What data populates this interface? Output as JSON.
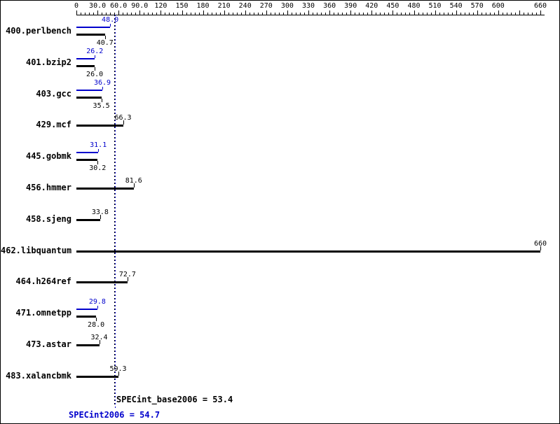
{
  "chart_data": {
    "type": "bar",
    "orientation": "horizontal",
    "title": "",
    "xlabel": "",
    "ylabel": "",
    "x_axis": {
      "min": 0,
      "max": 660,
      "major_tick_interval": 30,
      "minor_tick_interval": 6,
      "ticks": [
        {
          "value": 0,
          "label": "0"
        },
        {
          "value": 30,
          "label": "30.0"
        },
        {
          "value": 60,
          "label": "60.0"
        },
        {
          "value": 90,
          "label": "90.0"
        },
        {
          "value": 120,
          "label": "120"
        },
        {
          "value": 150,
          "label": "150"
        },
        {
          "value": 180,
          "label": "180"
        },
        {
          "value": 210,
          "label": "210"
        },
        {
          "value": 240,
          "label": "240"
        },
        {
          "value": 270,
          "label": "270"
        },
        {
          "value": 300,
          "label": "300"
        },
        {
          "value": 330,
          "label": "330"
        },
        {
          "value": 360,
          "label": "360"
        },
        {
          "value": 390,
          "label": "390"
        },
        {
          "value": 420,
          "label": "420"
        },
        {
          "value": 450,
          "label": "450"
        },
        {
          "value": 480,
          "label": "480"
        },
        {
          "value": 510,
          "label": "510"
        },
        {
          "value": 540,
          "label": "540"
        },
        {
          "value": 570,
          "label": "570"
        },
        {
          "value": 600,
          "label": "600"
        },
        {
          "value": 660,
          "label": "660"
        }
      ]
    },
    "legend": {
      "peak_series": "SPECint2006 (peak, blue)",
      "base_series": "SPECint_base2006 (base, black)"
    },
    "benchmarks": [
      {
        "name": "400.perlbench",
        "peak": {
          "value": 48.0,
          "label": "48.0"
        },
        "base": {
          "value": 40.7,
          "label": "40.7"
        }
      },
      {
        "name": "401.bzip2",
        "peak": {
          "value": 26.2,
          "label": "26.2"
        },
        "base": {
          "value": 26.0,
          "label": "26.0"
        }
      },
      {
        "name": "403.gcc",
        "peak": {
          "value": 36.9,
          "label": "36.9"
        },
        "base": {
          "value": 35.5,
          "label": "35.5"
        }
      },
      {
        "name": "429.mcf",
        "peak": null,
        "base": {
          "value": 66.3,
          "label": "66.3"
        }
      },
      {
        "name": "445.gobmk",
        "peak": {
          "value": 31.1,
          "label": "31.1"
        },
        "base": {
          "value": 30.2,
          "label": "30.2"
        }
      },
      {
        "name": "456.hmmer",
        "peak": null,
        "base": {
          "value": 81.6,
          "label": "81.6"
        }
      },
      {
        "name": "458.sjeng",
        "peak": null,
        "base": {
          "value": 33.8,
          "label": "33.8"
        }
      },
      {
        "name": "462.libquantum",
        "peak": null,
        "base": {
          "value": 660,
          "label": "660"
        }
      },
      {
        "name": "464.h264ref",
        "peak": null,
        "base": {
          "value": 72.7,
          "label": "72.7"
        }
      },
      {
        "name": "471.omnetpp",
        "peak": {
          "value": 29.8,
          "label": "29.8"
        },
        "base": {
          "value": 28.0,
          "label": "28.0"
        }
      },
      {
        "name": "473.astar",
        "peak": null,
        "base": {
          "value": 32.4,
          "label": "32.4"
        }
      },
      {
        "name": "483.xalancbmk",
        "peak": null,
        "base": {
          "value": 59.3,
          "label": "59.3"
        }
      }
    ],
    "summary": {
      "base": {
        "text": "SPECint_base2006 = 53.4",
        "value": 53.4
      },
      "peak": {
        "text": "SPECint2006 = 54.7",
        "value": 54.7
      }
    },
    "colors": {
      "bar_base": "#000000",
      "bar_peak": "#0000cc",
      "background": "#ffffff",
      "border": "#000000"
    }
  }
}
